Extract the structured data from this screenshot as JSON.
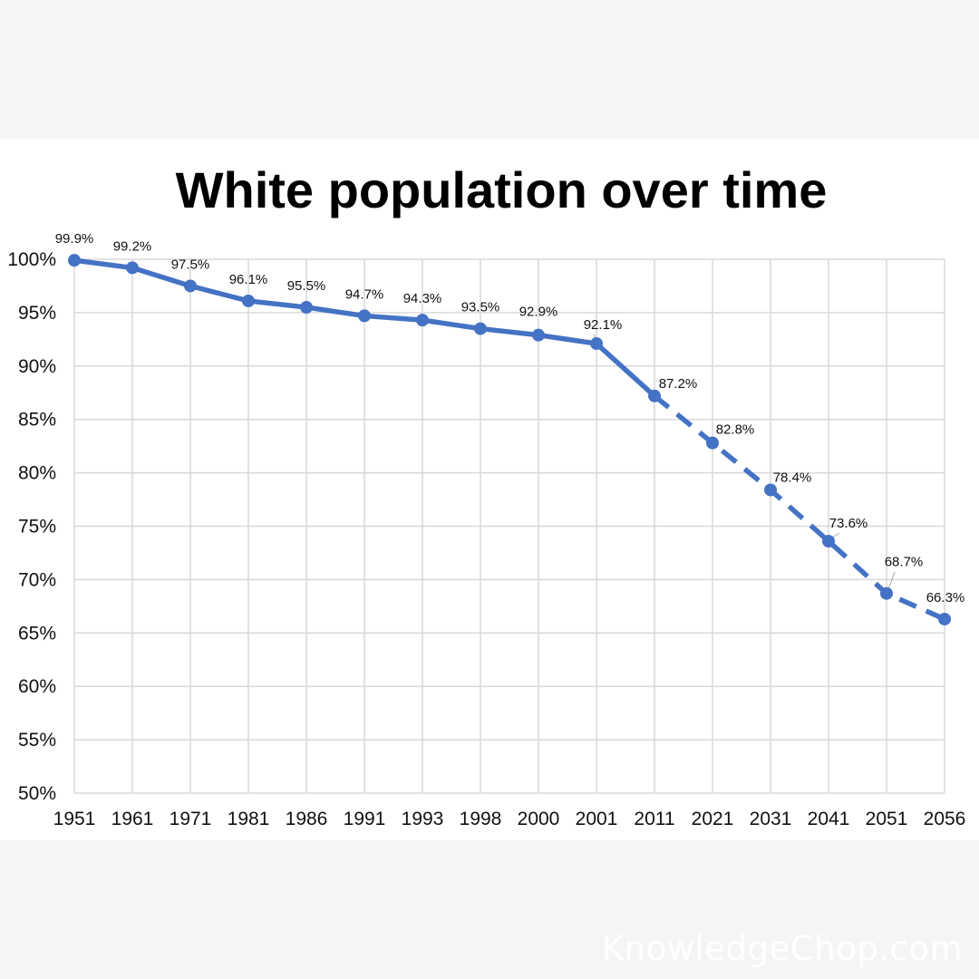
{
  "chart_data": {
    "type": "line",
    "title": "White population over time",
    "categories": [
      "1951",
      "1961",
      "1971",
      "1981",
      "1986",
      "1991",
      "1993",
      "1998",
      "2000",
      "2001",
      "2011",
      "2021",
      "2031",
      "2041",
      "2051",
      "2056"
    ],
    "values": [
      99.9,
      99.2,
      97.5,
      96.1,
      95.5,
      94.7,
      94.3,
      93.5,
      92.9,
      92.1,
      87.2,
      82.8,
      78.4,
      73.6,
      68.7,
      66.3
    ],
    "data_labels": [
      "99.9%",
      "99.2%",
      "97.5%",
      "96.1%",
      "95.5%",
      "94.7%",
      "94.3%",
      "93.5%",
      "92.9%",
      "92.1%",
      "87.2%",
      "82.8%",
      "78.4%",
      "73.6%",
      "68.7%",
      "66.3%"
    ],
    "projected_from_index": 10,
    "ylim": [
      50,
      100
    ],
    "yticks": [
      100,
      95,
      90,
      85,
      80,
      75,
      70,
      65,
      60,
      55,
      50
    ],
    "ytick_labels": [
      "100%",
      "95%",
      "90%",
      "85%",
      "80%",
      "75%",
      "70%",
      "65%",
      "60%",
      "55%",
      "50%"
    ],
    "xlabel": "",
    "ylabel": "",
    "grid": true,
    "line_color": "#4472c4",
    "grid_color": "#d9d9d9"
  },
  "watermark": "KnowledgeChop.com"
}
